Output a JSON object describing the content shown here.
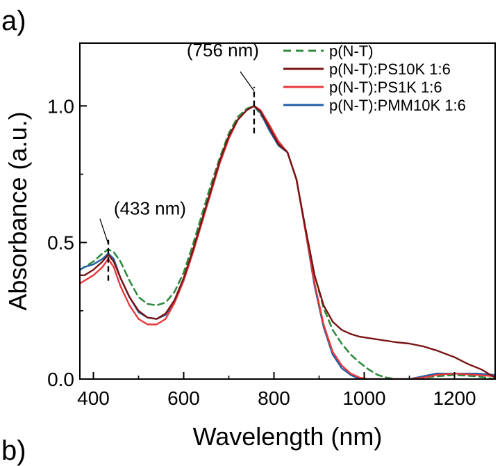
{
  "panel_labels": {
    "top": "a)",
    "bottom": "b)"
  },
  "chart_data": {
    "type": "line",
    "title": "",
    "xlabel": "Wavelength (nm)",
    "ylabel": "Absorbance (a.u.)",
    "xlim": [
      370,
      1290
    ],
    "ylim": [
      0,
      1.23
    ],
    "xticks": [
      400,
      600,
      800,
      1000,
      1200
    ],
    "yticks": [
      0.0,
      0.5,
      1.0
    ],
    "xtick_labels": [
      "400",
      "600",
      "800",
      "1000",
      "1200"
    ],
    "ytick_labels": [
      "0.0",
      "0.5",
      "1.0"
    ],
    "grid": false,
    "legend_position": "top-right",
    "series": [
      {
        "name": "p(N-T)",
        "color": "#2e8b3e",
        "dash": "dashed",
        "x": [
          370,
          380,
          400,
          420,
          433,
          445,
          460,
          480,
          500,
          520,
          540,
          560,
          580,
          600,
          620,
          640,
          660,
          680,
          700,
          720,
          740,
          756,
          770,
          790,
          810,
          830,
          850,
          870,
          890,
          910,
          930,
          950,
          970,
          990,
          1010,
          1030,
          1050,
          1070,
          1100,
          1130,
          1160,
          1200,
          1250,
          1290
        ],
        "y": [
          0.4,
          0.41,
          0.43,
          0.46,
          0.475,
          0.465,
          0.43,
          0.36,
          0.3,
          0.275,
          0.27,
          0.28,
          0.32,
          0.39,
          0.49,
          0.6,
          0.71,
          0.81,
          0.9,
          0.96,
          0.99,
          1.0,
          0.97,
          0.92,
          0.87,
          0.83,
          0.73,
          0.55,
          0.38,
          0.26,
          0.18,
          0.13,
          0.09,
          0.06,
          0.035,
          0.015,
          0.005,
          0.0,
          0.0,
          0.005,
          0.01,
          0.015,
          0.01,
          0.0
        ]
      },
      {
        "name": "p(N-T):PS10K 1:6",
        "color": "#7a1414",
        "dash": "solid",
        "x": [
          370,
          380,
          400,
          420,
          433,
          445,
          460,
          480,
          500,
          520,
          540,
          560,
          580,
          600,
          620,
          640,
          660,
          680,
          700,
          720,
          740,
          756,
          770,
          790,
          810,
          830,
          850,
          870,
          890,
          910,
          930,
          950,
          970,
          990,
          1010,
          1030,
          1050,
          1070,
          1100,
          1130,
          1160,
          1200,
          1230,
          1260,
          1290
        ],
        "y": [
          0.38,
          0.38,
          0.4,
          0.43,
          0.455,
          0.43,
          0.37,
          0.3,
          0.25,
          0.225,
          0.22,
          0.24,
          0.29,
          0.37,
          0.47,
          0.58,
          0.69,
          0.8,
          0.89,
          0.95,
          0.985,
          1.0,
          0.98,
          0.92,
          0.86,
          0.83,
          0.73,
          0.55,
          0.38,
          0.27,
          0.21,
          0.18,
          0.165,
          0.155,
          0.15,
          0.145,
          0.14,
          0.135,
          0.13,
          0.12,
          0.105,
          0.08,
          0.055,
          0.035,
          0.005
        ]
      },
      {
        "name": "p(N-T):PS1K 1:6",
        "color": "#e8383a",
        "dash": "solid",
        "x": [
          370,
          380,
          400,
          420,
          433,
          445,
          460,
          480,
          500,
          520,
          540,
          560,
          580,
          600,
          620,
          640,
          660,
          680,
          700,
          720,
          740,
          756,
          770,
          790,
          810,
          830,
          850,
          870,
          890,
          910,
          930,
          950,
          970,
          990,
          1010,
          1030,
          1050,
          1070,
          1100,
          1130,
          1160,
          1200,
          1250,
          1290
        ],
        "y": [
          0.35,
          0.36,
          0.38,
          0.41,
          0.44,
          0.41,
          0.34,
          0.27,
          0.22,
          0.2,
          0.2,
          0.22,
          0.28,
          0.36,
          0.46,
          0.57,
          0.68,
          0.79,
          0.88,
          0.95,
          0.985,
          1.0,
          0.985,
          0.93,
          0.87,
          0.83,
          0.73,
          0.54,
          0.35,
          0.2,
          0.1,
          0.05,
          0.02,
          0.005,
          0.0,
          0.0,
          0.0,
          0.0,
          0.0,
          0.005,
          0.015,
          0.02,
          0.015,
          0.01
        ]
      },
      {
        "name": "p(N-T):PMM10K 1:6",
        "color": "#1f5fa8",
        "dash": "solid",
        "x": [
          370,
          380,
          400,
          420,
          433,
          445,
          460,
          480,
          500,
          520,
          540,
          560,
          580,
          600,
          620,
          640,
          660,
          680,
          700,
          720,
          740,
          756,
          770,
          790,
          810,
          830,
          850,
          870,
          890,
          910,
          930,
          950,
          970,
          990,
          1010,
          1030,
          1050,
          1070,
          1100,
          1130,
          1160,
          1200,
          1250,
          1290
        ],
        "y": [
          0.4,
          0.41,
          0.42,
          0.44,
          0.46,
          0.44,
          0.37,
          0.3,
          0.245,
          0.225,
          0.22,
          0.235,
          0.285,
          0.365,
          0.465,
          0.575,
          0.685,
          0.795,
          0.885,
          0.95,
          0.985,
          1.0,
          0.975,
          0.91,
          0.855,
          0.83,
          0.73,
          0.54,
          0.34,
          0.19,
          0.09,
          0.04,
          0.015,
          0.0,
          0.0,
          0.0,
          0.0,
          0.0,
          0.0,
          0.01,
          0.02,
          0.02,
          0.02,
          0.015
        ]
      }
    ],
    "annotations": [
      {
        "text": "(433 nm)",
        "x": 433,
        "line_from": 0.36,
        "line_to": 0.51
      },
      {
        "text": "(756 nm)",
        "x": 756,
        "line_from": 0.9,
        "line_to": 1.07
      }
    ]
  }
}
